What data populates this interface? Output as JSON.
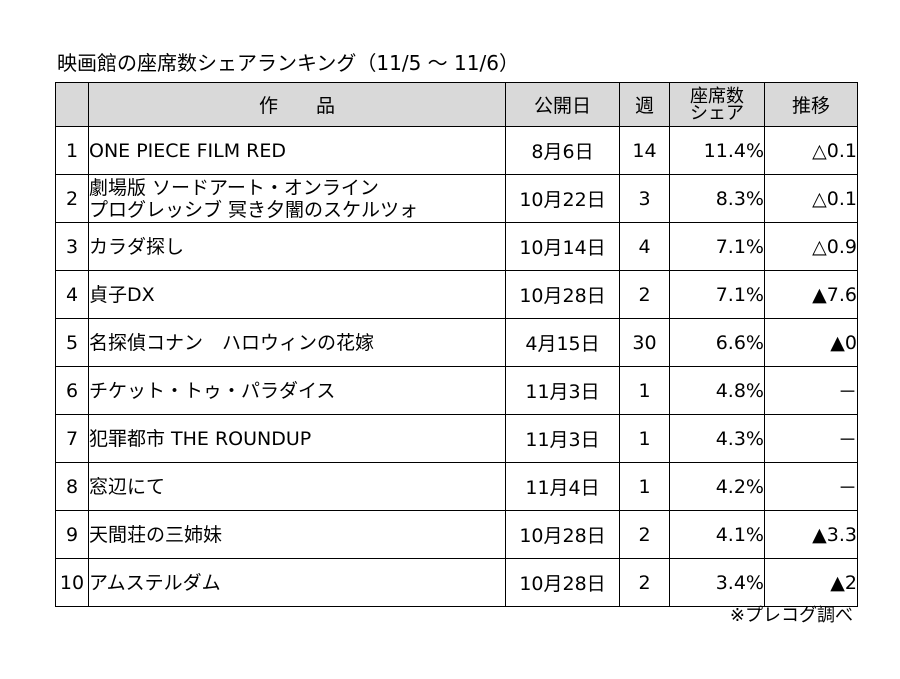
{
  "title": "映画館の座席数シェアランキング（11/5 ～ 11/6）",
  "header": {
    "rank": "",
    "title": "作　　品",
    "release": "公開日",
    "weeks": "週",
    "share_line1": "座席数",
    "share_line2": "シェア",
    "trend": "推移"
  },
  "rows": [
    {
      "rank": "1",
      "title_lines": [
        "ONE PIECE FILM RED"
      ],
      "release": "8月6日",
      "weeks": "14",
      "share": "11.4%",
      "trend": "△0.1"
    },
    {
      "rank": "2",
      "title_lines": [
        "劇場版 ソードアート・オンライン",
        "プログレッシブ 冥き夕闇のスケルツォ"
      ],
      "release": "10月22日",
      "weeks": "3",
      "share": "8.3%",
      "trend": "△0.1"
    },
    {
      "rank": "3",
      "title_lines": [
        "カラダ探し"
      ],
      "release": "10月14日",
      "weeks": "4",
      "share": "7.1%",
      "trend": "△0.9"
    },
    {
      "rank": "4",
      "title_lines": [
        "貞子DX"
      ],
      "release": "10月28日",
      "weeks": "2",
      "share": "7.1%",
      "trend": "▲7.6"
    },
    {
      "rank": "5",
      "title_lines": [
        "名探偵コナン　ハロウィンの花嫁"
      ],
      "release": "4月15日",
      "weeks": "30",
      "share": "6.6%",
      "trend": "▲0"
    },
    {
      "rank": "6",
      "title_lines": [
        "チケット・トゥ・パラダイス"
      ],
      "release": "11月3日",
      "weeks": "1",
      "share": "4.8%",
      "trend": "－"
    },
    {
      "rank": "7",
      "title_lines": [
        "犯罪都市 THE ROUNDUP"
      ],
      "release": "11月3日",
      "weeks": "1",
      "share": "4.3%",
      "trend": "－"
    },
    {
      "rank": "8",
      "title_lines": [
        "窓辺にて"
      ],
      "release": "11月4日",
      "weeks": "1",
      "share": "4.2%",
      "trend": "－"
    },
    {
      "rank": "9",
      "title_lines": [
        "天間荘の三姉妹"
      ],
      "release": "10月28日",
      "weeks": "2",
      "share": "4.1%",
      "trend": "▲3.3"
    },
    {
      "rank": "10",
      "title_lines": [
        "アムステルダム"
      ],
      "release": "10月28日",
      "weeks": "2",
      "share": "3.4%",
      "trend": "▲2"
    }
  ],
  "note": "※プレコグ調べ"
}
